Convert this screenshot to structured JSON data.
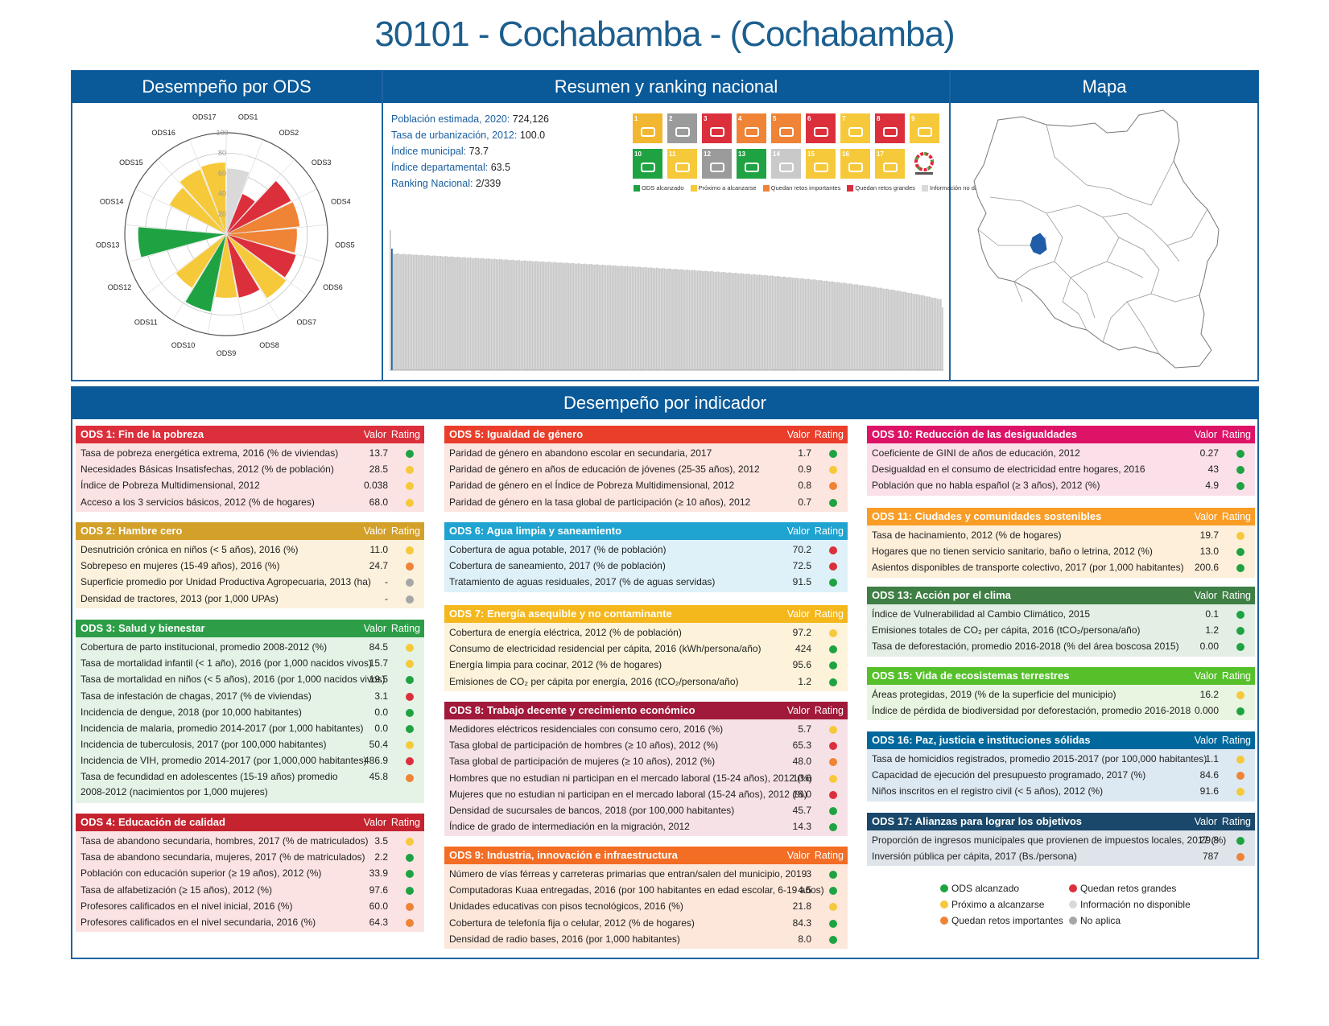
{
  "title": "30101 - Cochabamba - (Cochabamba)",
  "colors": {
    "green": "#1fa342",
    "yellow": "#f6c93b",
    "orange": "#ef8336",
    "red": "#dc2f3c",
    "lightgray": "#d9d9d9",
    "gray": "#a6a6a6",
    "header_blue": "#0a5a99"
  },
  "panels": {
    "radar_title": "Desempeño por ODS",
    "summary_title": "Resumen y ranking nacional",
    "map_title": "Mapa",
    "indicators_title": "Desempeño por indicador"
  },
  "summary": {
    "items": [
      {
        "label": "Población estimada, 2020:",
        "value": "724,126"
      },
      {
        "label": "Tasa de urbanización, 2012:",
        "value": "100.0"
      },
      {
        "label": "Índice municipal:",
        "value": "73.7"
      },
      {
        "label": "Índice departamental:",
        "value": "63.5"
      },
      {
        "label": "Ranking Nacional:",
        "value": "2/339"
      }
    ],
    "sdg_tiles": [
      {
        "num": "1",
        "color": "#f2b731",
        "icon": "family-icon"
      },
      {
        "num": "2",
        "color": "#9b9b9b",
        "icon": "bowl-icon"
      },
      {
        "num": "3",
        "color": "#dc2f3c",
        "icon": "heartbeat-icon"
      },
      {
        "num": "4",
        "color": "#ef8336",
        "icon": "book-icon"
      },
      {
        "num": "5",
        "color": "#ef8336",
        "icon": "gender-icon"
      },
      {
        "num": "6",
        "color": "#dc2f3c",
        "icon": "water-drop-icon"
      },
      {
        "num": "7",
        "color": "#f6c93b",
        "icon": "sun-icon"
      },
      {
        "num": "8",
        "color": "#dc2f3c",
        "icon": "growth-chart-icon"
      },
      {
        "num": "9",
        "color": "#f6c93b",
        "icon": "cubes-icon"
      },
      {
        "num": "10",
        "color": "#1fa342",
        "icon": "equality-icon"
      },
      {
        "num": "11",
        "color": "#f6c93b",
        "icon": "city-icon"
      },
      {
        "num": "12",
        "color": "#9b9b9b",
        "icon": "infinity-icon"
      },
      {
        "num": "13",
        "color": "#1fa342",
        "icon": "eye-icon"
      },
      {
        "num": "14",
        "color": "#c9c9c9",
        "icon": "fish-icon"
      },
      {
        "num": "15",
        "color": "#f6c93b",
        "icon": "tree-icon"
      },
      {
        "num": "16",
        "color": "#f6c93b",
        "icon": "dove-icon"
      },
      {
        "num": "17",
        "color": "#f6c93b",
        "icon": "flower-icon"
      },
      {
        "num": "",
        "color": "#ffffff",
        "icon": "sdg-wheel-icon"
      }
    ],
    "legend": [
      {
        "label": "ODS alcanzado",
        "color": "#1fa342"
      },
      {
        "label": "Próximo a alcanzarse",
        "color": "#f6c93b"
      },
      {
        "label": "Quedan retos importantes",
        "color": "#ef8336"
      },
      {
        "label": "Quedan retos grandes",
        "color": "#dc2f3c"
      },
      {
        "label": "Información no disponible",
        "color": "#d9d9d9"
      },
      {
        "label": "No aplica",
        "color": "#a6a6a6"
      }
    ]
  },
  "chart_data": [
    {
      "type": "polar-bar",
      "categories": [
        "ODS1",
        "ODS2",
        "ODS3",
        "ODS4",
        "ODS5",
        "ODS6",
        "ODS7",
        "ODS8",
        "ODS9",
        "ODS10",
        "ODS11",
        "ODS12",
        "ODS13",
        "ODS14",
        "ODS15",
        "ODS16",
        "ODS17"
      ],
      "values": [
        65,
        43,
        72,
        73,
        70,
        72,
        75,
        64,
        63,
        78,
        63,
        0,
        87,
        0,
        63,
        69,
        71
      ],
      "colors": [
        "#d9d9d9",
        "#dc2f3c",
        "#dc2f3c",
        "#ef8336",
        "#ef8336",
        "#dc2f3c",
        "#f6c93b",
        "#dc2f3c",
        "#f6c93b",
        "#1fa342",
        "#f6c93b",
        "#d9d9d9",
        "#1fa342",
        "#d9d9d9",
        "#f6c93b",
        "#f6c93b",
        "#f6c93b"
      ],
      "rlim": [
        0,
        100
      ],
      "rticks": [
        "20",
        "40",
        "60",
        "80",
        "100"
      ]
    },
    {
      "type": "bar",
      "description_values_sorted_desc": true,
      "highlight_index": 1,
      "count": 339,
      "ylim": [
        0,
        100
      ],
      "first": 85,
      "second": 73.7,
      "last": 38
    }
  ],
  "columns": {
    "value": "Valor",
    "rating": "Rating"
  },
  "blocks": [
    {
      "title": "ODS 1: Fin de la pobreza",
      "color": "#dc2f3c",
      "bg": "#fbe3e4",
      "rows": [
        {
          "label": "Tasa de pobreza energética extrema, 2016 (% de viviendas)",
          "value": "13.7",
          "rating": "green"
        },
        {
          "label": "Necesidades Básicas Insatisfechas, 2012 (% de población)",
          "value": "28.5",
          "rating": "yellow"
        },
        {
          "label": "Índice de Pobreza Multidimensional, 2012",
          "value": "0.038",
          "rating": "yellow"
        },
        {
          "label": "Acceso a los 3 servicios básicos, 2012 (% de hogares)",
          "value": "68.0",
          "rating": "yellow"
        }
      ]
    },
    {
      "title": "ODS 2: Hambre cero",
      "color": "#d3a029",
      "bg": "#fbf1dc",
      "rows": [
        {
          "label": "Desnutrición crónica en niños (< 5 años), 2016 (%)",
          "value": "11.0",
          "rating": "yellow"
        },
        {
          "label": "Sobrepeso en mujeres (15-49 años), 2016 (%)",
          "value": "24.7",
          "rating": "orange"
        },
        {
          "label": "Superficie promedio por Unidad Productiva Agropecuaria, 2013 (ha)",
          "value": "-",
          "rating": "gray"
        },
        {
          "label": "Densidad de tractores, 2013 (por 1,000 UPAs)",
          "value": "-",
          "rating": "gray"
        }
      ]
    },
    {
      "title": "ODS 3: Salud y bienestar",
      "color": "#2d9e47",
      "bg": "#e4f3e6",
      "rows": [
        {
          "label": "Cobertura de parto institucional, promedio 2008-2012 (%)",
          "value": "84.5",
          "rating": "yellow"
        },
        {
          "label": "Tasa de mortalidad infantil (< 1 año), 2016 (por 1,000 nacidos vivos)",
          "value": "15.7",
          "rating": "yellow"
        },
        {
          "label": "Tasa de mortalidad en niños (< 5 años), 2016 (por 1,000 nacidos vivos)",
          "value": "19.5",
          "rating": "green"
        },
        {
          "label": "Tasa de infestación de chagas, 2017 (% de viviendas)",
          "value": "3.1",
          "rating": "red"
        },
        {
          "label": "Incidencia de dengue, 2018 (por 10,000 habitantes)",
          "value": "0.0",
          "rating": "green"
        },
        {
          "label": "Incidencia de malaria, promedio 2014-2017 (por 1,000 habitantes)",
          "value": "0.0",
          "rating": "green"
        },
        {
          "label": "Incidencia de tuberculosis, 2017 (por 100,000 habitantes)",
          "value": "50.4",
          "rating": "yellow"
        },
        {
          "label": "Incidencia de VIH, promedio 2014-2017 (por 1,000,000 habitantes)",
          "value": "486.9",
          "rating": "red"
        },
        {
          "label": "Tasa de fecundidad en adolescentes (15-19 años) promedio 2008-2012 (nacimientos por 1,000 mujeres)",
          "value": "45.8",
          "rating": "orange",
          "tall": true
        }
      ]
    },
    {
      "title": "ODS 4: Educación de calidad",
      "color": "#c5232f",
      "bg": "#fbe3e4",
      "rows": [
        {
          "label": "Tasa de abandono secundaria, hombres, 2017 (% de matriculados)",
          "value": "3.5",
          "rating": "yellow"
        },
        {
          "label": "Tasa de abandono secundaria, mujeres, 2017 (% de matriculados)",
          "value": "2.2",
          "rating": "green"
        },
        {
          "label": "Población con educación superior (≥ 19 años), 2012 (%)",
          "value": "33.9",
          "rating": "green"
        },
        {
          "label": "Tasa de alfabetización (≥ 15 años), 2012 (%)",
          "value": "97.6",
          "rating": "green"
        },
        {
          "label": "Profesores calificados en el nivel inicial, 2016 (%)",
          "value": "60.0",
          "rating": "orange"
        },
        {
          "label": "Profesores calificados en el nivel secundaria, 2016 (%)",
          "value": "64.3",
          "rating": "orange"
        }
      ]
    },
    {
      "title": "ODS 5: Igualdad de género",
      "color": "#ea3e2b",
      "bg": "#fde5e0",
      "rows": [
        {
          "label": "Paridad de género en abandono escolar en secundaria, 2017",
          "value": "1.7",
          "rating": "green"
        },
        {
          "label": "Paridad de género en años de educación de jóvenes (25-35 años), 2012",
          "value": "0.9",
          "rating": "yellow"
        },
        {
          "label": "Paridad de género en el Índice de Pobreza Multidimensional, 2012",
          "value": "0.8",
          "rating": "orange"
        },
        {
          "label": "Paridad de género en la tasa global de participación (≥ 10 años), 2012",
          "value": "0.7",
          "rating": "green"
        }
      ]
    },
    {
      "title": "ODS 6: Agua limpia y saneamiento",
      "color": "#1fa3d1",
      "bg": "#def1f9",
      "rows": [
        {
          "label": "Cobertura de agua potable, 2017 (% de población)",
          "value": "70.2",
          "rating": "red"
        },
        {
          "label": "Cobertura de saneamiento, 2017 (% de población)",
          "value": "72.5",
          "rating": "red"
        },
        {
          "label": "Tratamiento de aguas residuales, 2017 (% de aguas servidas)",
          "value": "91.5",
          "rating": "green"
        }
      ]
    },
    {
      "title": "ODS 7: Energía asequible y no contaminante",
      "color": "#f4b71c",
      "bg": "#fdf3da",
      "rows": [
        {
          "label": "Cobertura de energía eléctrica, 2012 (% de población)",
          "value": "97.2",
          "rating": "yellow"
        },
        {
          "label": "Consumo de electricidad residencial per cápita, 2016 (kWh/persona/año)",
          "value": "424",
          "rating": "green"
        },
        {
          "label": "Energía limpia para cocinar, 2012 (% de hogares)",
          "value": "95.6",
          "rating": "green"
        },
        {
          "label": "Emisiones de CO₂ per cápita por energía, 2016 (tCO₂/persona/año)",
          "value": "1.2",
          "rating": "green"
        }
      ]
    },
    {
      "title": "ODS 8: Trabajo decente y crecimiento económico",
      "color": "#a11a3b",
      "bg": "#f6e1e6",
      "rows": [
        {
          "label": "Medidores eléctricos residenciales con consumo cero, 2016 (%)",
          "value": "5.7",
          "rating": "yellow"
        },
        {
          "label": "Tasa global de participación de hombres (≥ 10 años), 2012 (%)",
          "value": "65.3",
          "rating": "red"
        },
        {
          "label": "Tasa global de participación de mujeres (≥ 10 años), 2012 (%)",
          "value": "48.0",
          "rating": "orange"
        },
        {
          "label": "Hombres que no estudian ni participan en el mercado laboral (15-24 años), 2012 (%)",
          "value": "10.6",
          "rating": "yellow"
        },
        {
          "label": "Mujeres que no estudian ni participan en el mercado laboral (15-24 años), 2012 (%)",
          "value": "18.0",
          "rating": "red"
        },
        {
          "label": "Densidad de sucursales de bancos, 2018 (por 100,000 habitantes)",
          "value": "45.7",
          "rating": "green"
        },
        {
          "label": "Índice de grado de intermediación en la migración, 2012",
          "value": "14.3",
          "rating": "green"
        }
      ]
    },
    {
      "title": "ODS 9: Industria, innovación e infraestructura",
      "color": "#f36d25",
      "bg": "#fde7da",
      "rows": [
        {
          "label": "Número de vías férreas y carreteras primarias que entran/salen del municipio, 2019",
          "value": "3",
          "rating": "green"
        },
        {
          "label": "Computadoras Kuaa entregadas, 2016 (por 100 habitantes en edad escolar, 6-19 años)",
          "value": "4.5",
          "rating": "green"
        },
        {
          "label": "Unidades educativas con pisos tecnológicos, 2016 (%)",
          "value": "21.8",
          "rating": "yellow"
        },
        {
          "label": "Cobertura de telefonía fija o celular, 2012 (% de hogares)",
          "value": "84.3",
          "rating": "green"
        },
        {
          "label": "Densidad de radio bases, 2016 (por 1,000 habitantes)",
          "value": "8.0",
          "rating": "green"
        }
      ]
    },
    {
      "title": "ODS 10: Reducción de las desigualdades",
      "color": "#dd1367",
      "bg": "#fbe0ea",
      "rows": [
        {
          "label": "Coeficiente de GINI de años de educación, 2012",
          "value": "0.27",
          "rating": "green"
        },
        {
          "label": "Desigualdad en el consumo de electricidad entre hogares, 2016",
          "value": "43",
          "rating": "green"
        },
        {
          "label": "Población que no habla español (≥ 3 años), 2012 (%)",
          "value": "4.9",
          "rating": "green"
        }
      ]
    },
    {
      "title": "ODS 11: Ciudades y comunidades sostenibles",
      "color": "#f99d26",
      "bg": "#fdefda",
      "rows": [
        {
          "label": "Tasa de hacinamiento, 2012 (% de hogares)",
          "value": "19.7",
          "rating": "yellow"
        },
        {
          "label": "Hogares que no tienen servicio sanitario, baño o letrina, 2012 (%)",
          "value": "13.0",
          "rating": "green"
        },
        {
          "label": "Asientos disponibles de transporte colectivo, 2017 (por 1,000 habitantes)",
          "value": "200.6",
          "rating": "green"
        }
      ]
    },
    {
      "title": "ODS 13: Acción por el clima",
      "color": "#3f7e44",
      "bg": "#e3eee4",
      "rows": [
        {
          "label": "Índice de Vulnerabilidad al Cambio Climático, 2015",
          "value": "0.1",
          "rating": "green"
        },
        {
          "label": "Emisiones totales de CO₂ per cápita, 2016 (tCO₂/persona/año)",
          "value": "1.2",
          "rating": "green"
        },
        {
          "label": "Tasa de deforestación, promedio 2016-2018 (% del área boscosa 2015)",
          "value": "0.00",
          "rating": "green"
        }
      ]
    },
    {
      "title": "ODS 15: Vida de ecosistemas terrestres",
      "color": "#56c02b",
      "bg": "#e8f5e0",
      "rows": [
        {
          "label": "Áreas protegidas, 2019 (% de la superficie del municipio)",
          "value": "16.2",
          "rating": "yellow"
        },
        {
          "label": "Índice de pérdida de biodiversidad por deforestación, promedio 2016-2018",
          "value": "0.000",
          "rating": "green"
        }
      ]
    },
    {
      "title": "ODS 16: Paz, justicia e instituciones sólidas",
      "color": "#00689d",
      "bg": "#dde9f2",
      "rows": [
        {
          "label": "Tasa de homicidios registrados, promedio 2015-2017 (por 100,000 habitantes)",
          "value": "1.1",
          "rating": "yellow"
        },
        {
          "label": "Capacidad de ejecución del presupuesto programado, 2017 (%)",
          "value": "84.6",
          "rating": "orange"
        },
        {
          "label": "Niños inscritos en el registro civil (< 5 años), 2012 (%)",
          "value": "91.6",
          "rating": "yellow"
        }
      ]
    },
    {
      "title": "ODS 17: Alianzas para lograr los objetivos",
      "color": "#19486a",
      "bg": "#dee4ea",
      "rows": [
        {
          "label": "Proporción de ingresos municipales que provienen de impuestos locales, 2017 (%)",
          "value": "29.8",
          "rating": "green"
        },
        {
          "label": "Inversión pública per cápita, 2017 (Bs./persona)",
          "value": "787",
          "rating": "orange"
        }
      ]
    }
  ],
  "legend": [
    {
      "label": "ODS alcanzado",
      "rating": "green"
    },
    {
      "label": "Próximo a alcanzarse",
      "rating": "yellow"
    },
    {
      "label": "Quedan retos importantes",
      "rating": "orange"
    },
    {
      "label": "Quedan retos grandes",
      "rating": "red"
    },
    {
      "label": "Información no disponible",
      "rating": "lightgray"
    },
    {
      "label": "No aplica",
      "rating": "gray"
    }
  ]
}
